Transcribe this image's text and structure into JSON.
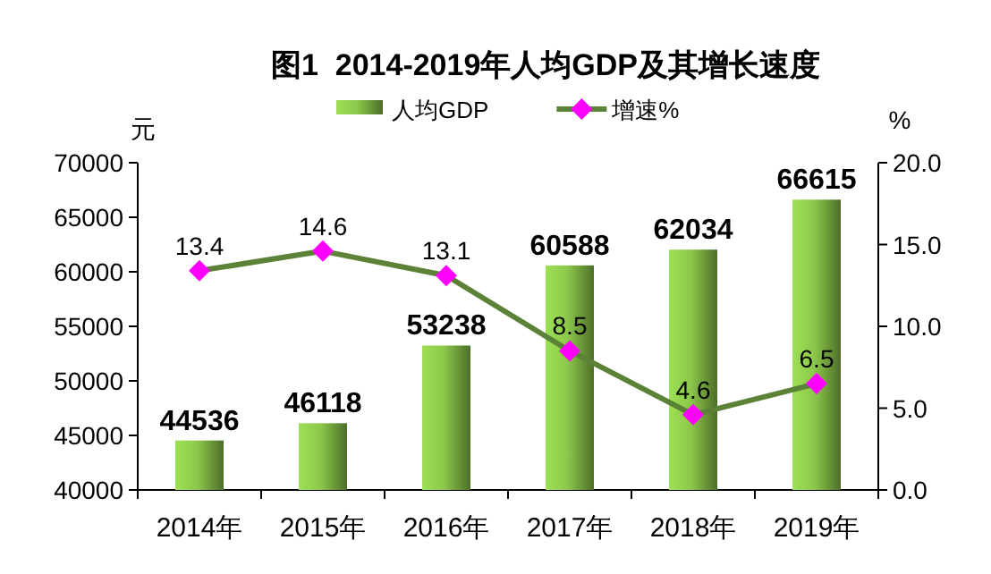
{
  "chart_data": {
    "type": "bar",
    "title": "图1  2014-2019年人均GDP及其增长速度",
    "ylabel": "元",
    "y2label": "%",
    "categories": [
      "2014年",
      "2015年",
      "2016年",
      "2017年",
      "2018年",
      "2019年"
    ],
    "series": [
      {
        "name": "人均GDP",
        "color": "#8cc84b",
        "values": [
          44536,
          46118,
          53238,
          60588,
          62034,
          66615
        ]
      },
      {
        "name": "增速%",
        "type": "line",
        "axis": "y2",
        "color": "#5b8236",
        "colors": [
          "#ff00ff",
          "#ff00ff",
          "#ff00ff",
          "#ff00ff",
          "#ff00ff",
          "#ff00ff"
        ],
        "values": [
          13.4,
          14.6,
          13.1,
          8.5,
          4.6,
          6.5
        ]
      }
    ],
    "ylim": [
      40000,
      70000
    ],
    "yticks": [
      40000,
      45000,
      50000,
      55000,
      60000,
      65000,
      70000
    ],
    "y2lim": [
      0,
      20
    ],
    "y2ticks": [
      {
        "value": 0,
        "label": "0.0"
      },
      {
        "value": 5,
        "label": "5.0"
      },
      {
        "value": 10,
        "label": "10.0"
      },
      {
        "value": 15,
        "label": "15.0"
      },
      {
        "value": 20,
        "label": "20.0"
      }
    ],
    "marker": "diamond",
    "line_style": "solid",
    "grid": false,
    "legend": "top",
    "data_labels": true
  }
}
